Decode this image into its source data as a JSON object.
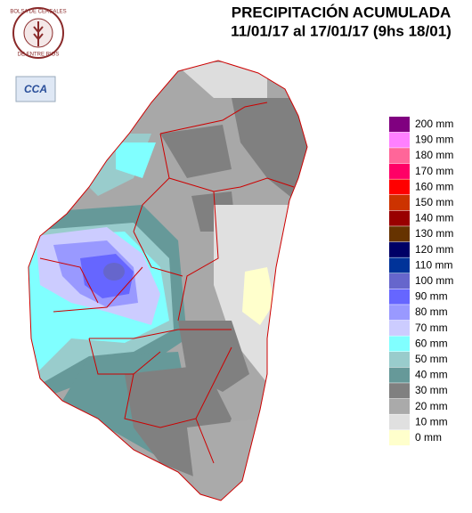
{
  "header": {
    "title": "PRECIPITACIÓN ACUMULADA",
    "subtitle": "11/01/17 al 17/01/17 (9hs 18/01)"
  },
  "logos": {
    "bolsa_top": "BOLSA DE CEREALES",
    "bolsa_bottom": "DE ENTRE RIOS",
    "cca": "CCA"
  },
  "legend": {
    "items": [
      {
        "label": "200 mm",
        "color": "#800080"
      },
      {
        "label": "190 mm",
        "color": "#ff80ff"
      },
      {
        "label": "180 mm",
        "color": "#ff6699"
      },
      {
        "label": "170 mm",
        "color": "#ff0066"
      },
      {
        "label": "160 mm",
        "color": "#ff0000"
      },
      {
        "label": "150 mm",
        "color": "#cc3300"
      },
      {
        "label": "140 mm",
        "color": "#990000"
      },
      {
        "label": "130 mm",
        "color": "#663300"
      },
      {
        "label": "120 mm",
        "color": "#000066"
      },
      {
        "label": "110 mm",
        "color": "#003399"
      },
      {
        "label": "100 mm",
        "color": "#6666cc"
      },
      {
        "label": "90 mm",
        "color": "#6666ff"
      },
      {
        "label": "80 mm",
        "color": "#9999ff"
      },
      {
        "label": "70 mm",
        "color": "#ccccff"
      },
      {
        "label": "60 mm",
        "color": "#80ffff"
      },
      {
        "label": "50 mm",
        "color": "#99cccc"
      },
      {
        "label": "40 mm",
        "color": "#669999"
      },
      {
        "label": "30 mm",
        "color": "#808080"
      },
      {
        "label": "20 mm",
        "color": "#aaaaaa"
      },
      {
        "label": "10 mm",
        "color": "#e0e0e0"
      },
      {
        "label": "0 mm",
        "color": "#ffffcc"
      }
    ]
  }
}
